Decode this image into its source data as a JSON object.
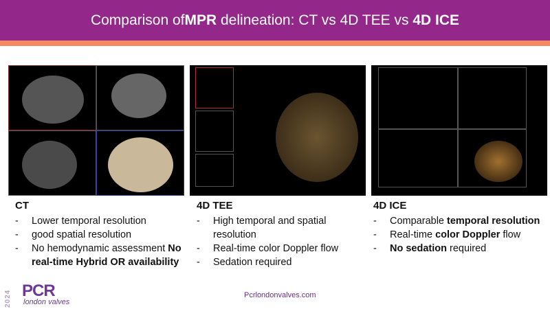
{
  "header": {
    "title_pre": "Comparison of ",
    "title_b1": "MPR",
    "title_mid": " delineation: CT vs 4D TEE vs ",
    "title_b2": "4D ICE"
  },
  "colors": {
    "header": "#93278a",
    "stripe": "#f58a62"
  },
  "columns": [
    {
      "title": "CT",
      "items": [
        [
          {
            "t": "Lower temporal resolution",
            "b": false
          }
        ],
        [
          {
            "t": "good spatial resolution",
            "b": false
          }
        ],
        [
          {
            "t": "No hemodynamic assessment ",
            "b": false
          },
          {
            "t": "No real-time Hybrid OR availability",
            "b": true
          }
        ]
      ]
    },
    {
      "title": "4D TEE",
      "items": [
        [
          {
            "t": "High temporal and spatial resolution",
            "b": false
          }
        ],
        [
          {
            "t": "Real-time color Doppler flow",
            "b": false
          }
        ],
        [
          {
            "t": "Sedation required",
            "b": false
          }
        ]
      ]
    },
    {
      "title": "4D ICE",
      "items": [
        [
          {
            "t": "Comparable ",
            "b": false
          },
          {
            "t": "temporal resolution",
            "b": true
          }
        ],
        [
          {
            "t": "Real-time ",
            "b": false
          },
          {
            "t": "color Doppler",
            "b": true
          },
          {
            "t": " flow",
            "b": false
          }
        ],
        [
          {
            "t": "No sedation",
            "b": true
          },
          {
            "t": " required",
            "b": false
          }
        ]
      ]
    }
  ],
  "bullet": "-",
  "footer": {
    "url": "Pcrlondonvalves.com",
    "logo_year": "2024",
    "logo_name": "PCR",
    "logo_sub": "london valves"
  }
}
